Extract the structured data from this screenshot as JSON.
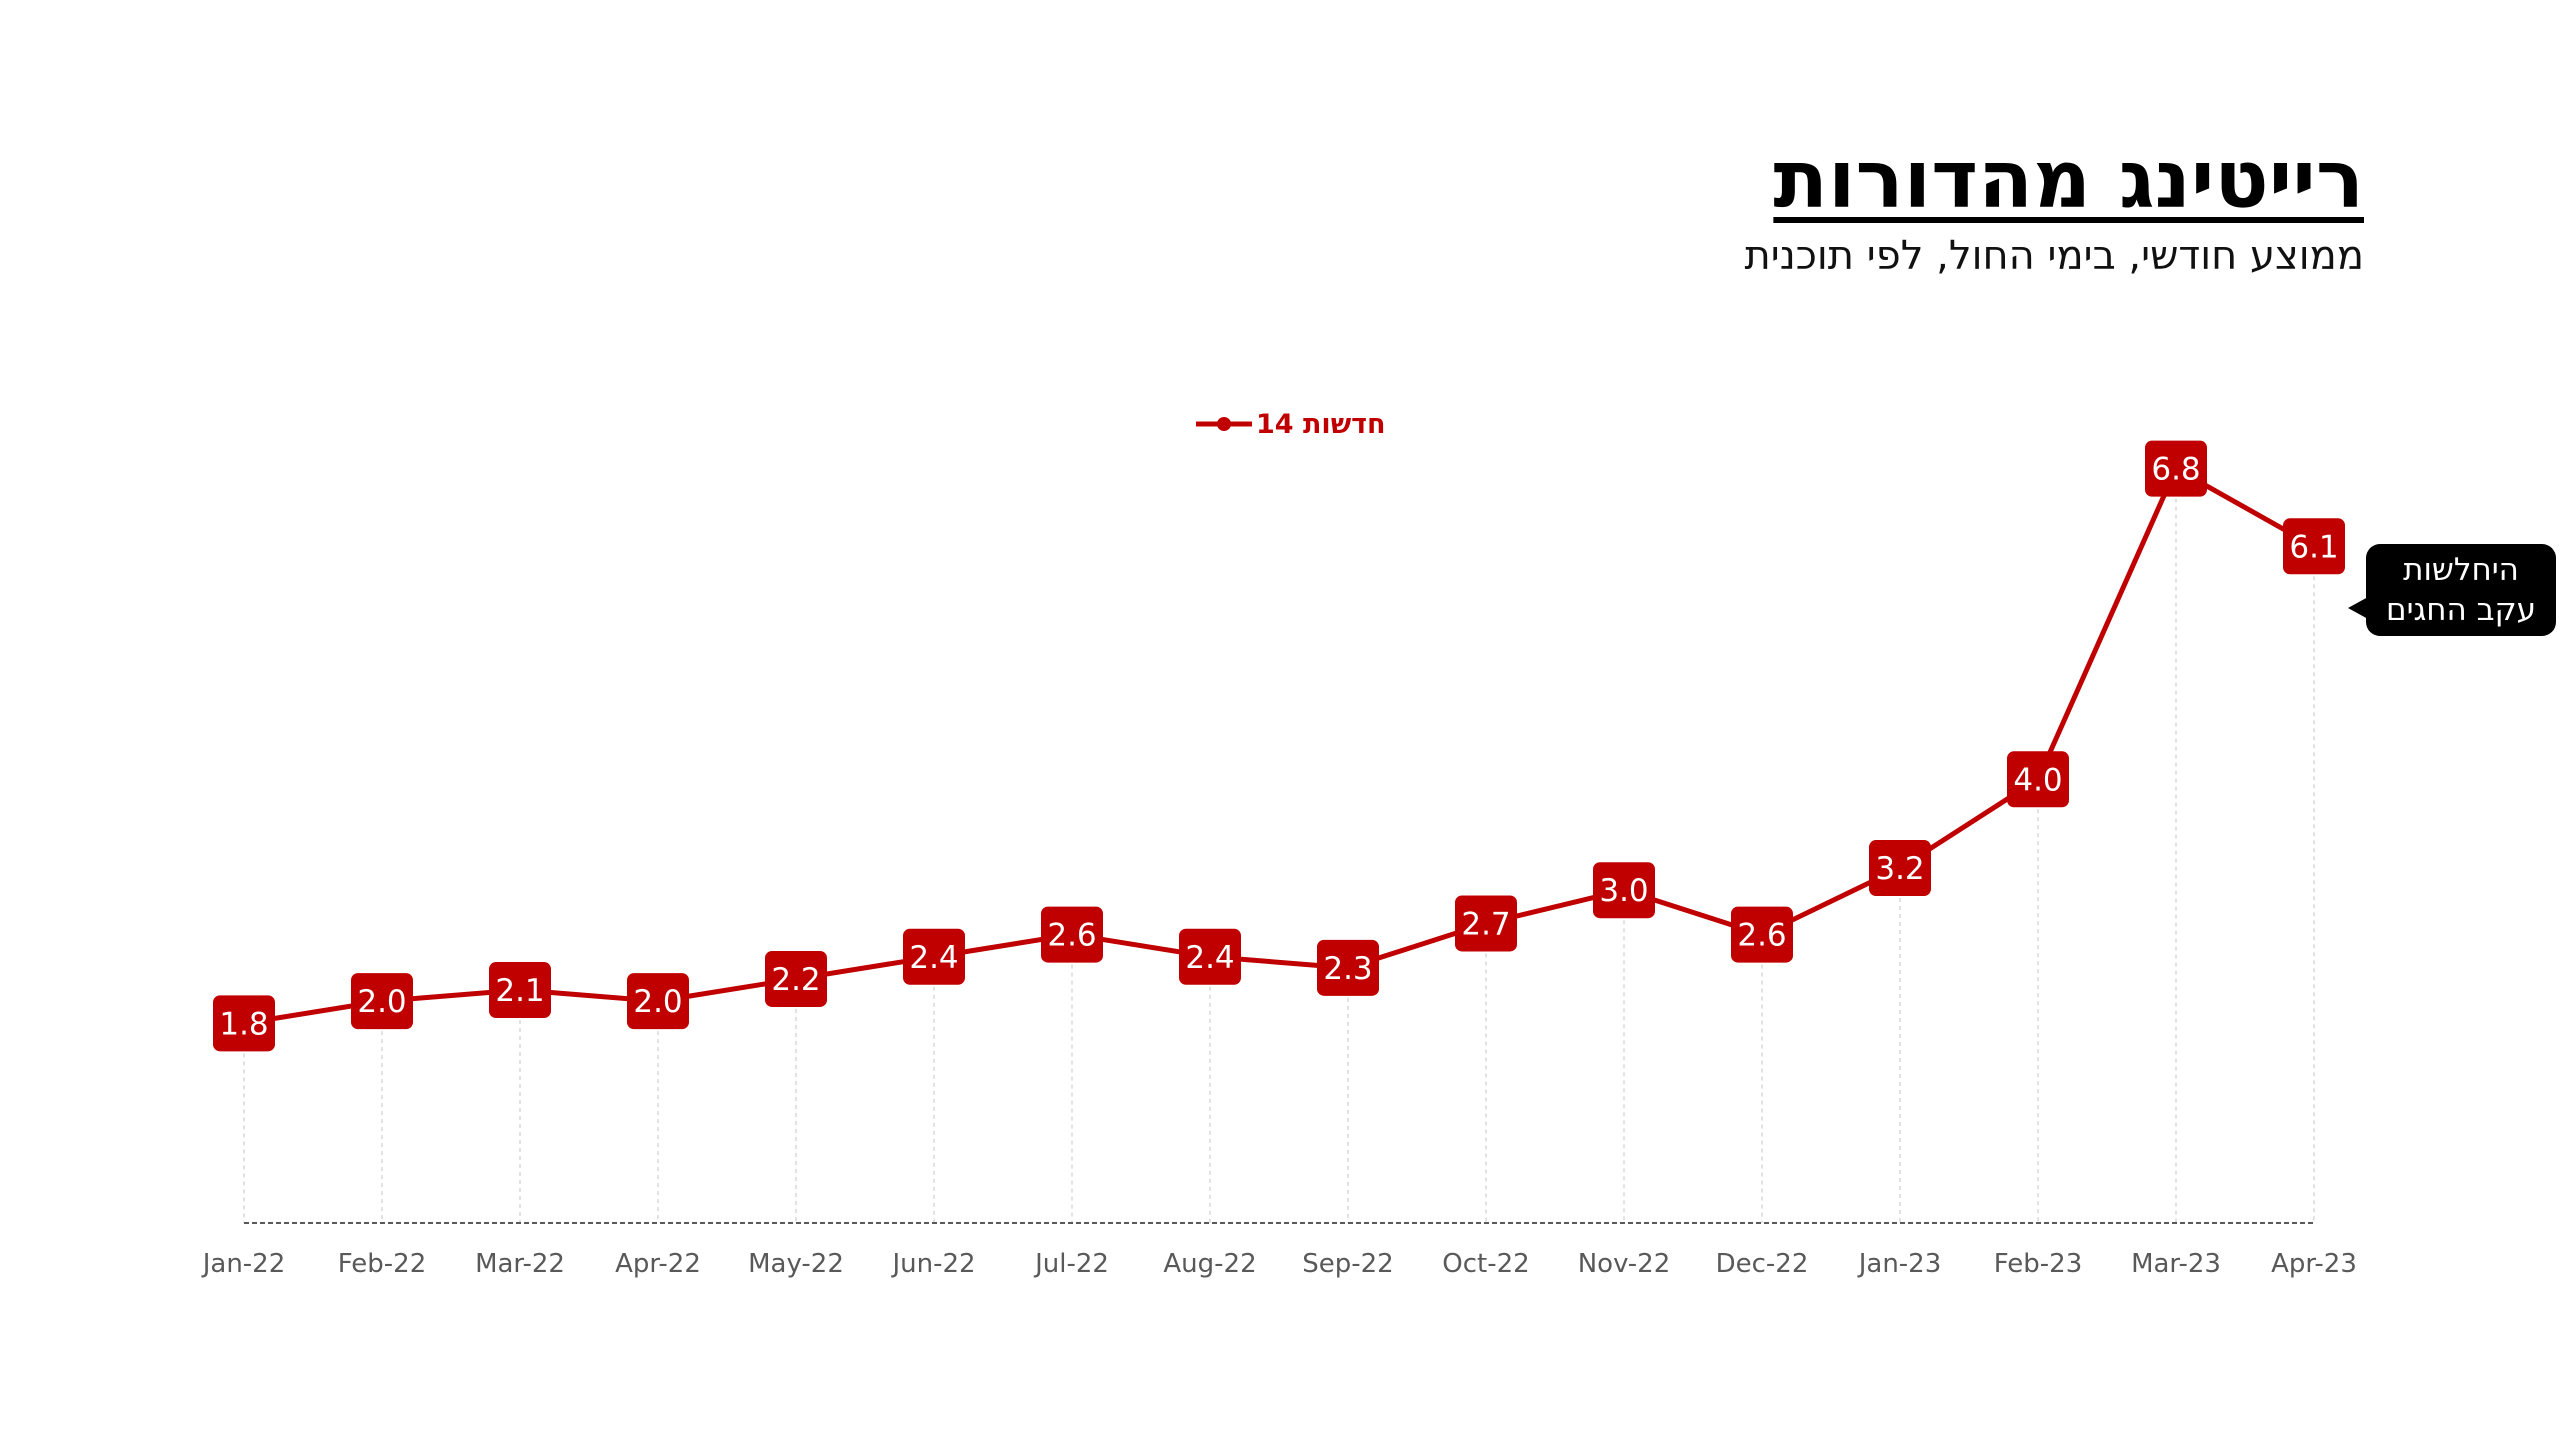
{
  "title": "רייטינג מהדורות",
  "subtitle": "ממוצע חודשי, בימי החול, לפי תוכנית",
  "colors": {
    "series": "#c00000",
    "axis": "#595959",
    "gridline": "#d9d9d9",
    "label_text": "#ffffff",
    "callout_bg": "#000000"
  },
  "callout": {
    "line1": "היחלשות",
    "line2": "עקב החגים"
  },
  "chart_data": {
    "type": "line",
    "categories": [
      "Jan-22",
      "Feb-22",
      "Mar-22",
      "Apr-22",
      "May-22",
      "Jun-22",
      "Jul-22",
      "Aug-22",
      "Sep-22",
      "Oct-22",
      "Nov-22",
      "Dec-22",
      "Jan-23",
      "Feb-23",
      "Mar-23",
      "Apr-23"
    ],
    "series": [
      {
        "name": "חדשות 14",
        "values": [
          1.8,
          2.0,
          2.1,
          2.0,
          2.2,
          2.4,
          2.6,
          2.4,
          2.3,
          2.7,
          3.0,
          2.6,
          3.2,
          4.0,
          6.8,
          6.1
        ],
        "labels": [
          "1.8",
          "2.0",
          "2.1",
          "2.0",
          "2.2",
          "2.4",
          "2.6",
          "2.4",
          "2.3",
          "2.7",
          "3.0",
          "2.6",
          "3.2",
          "4.0",
          "6.8",
          "6.1"
        ]
      }
    ],
    "title": "רייטינג מהדורות",
    "subtitle": "ממוצע חודשי, בימי החול, לפי תוכנית",
    "xlabel": "",
    "ylabel": "",
    "ylim": [
      0,
      7.5
    ],
    "legend_position": "top-center",
    "grid": "vertical dotted"
  }
}
